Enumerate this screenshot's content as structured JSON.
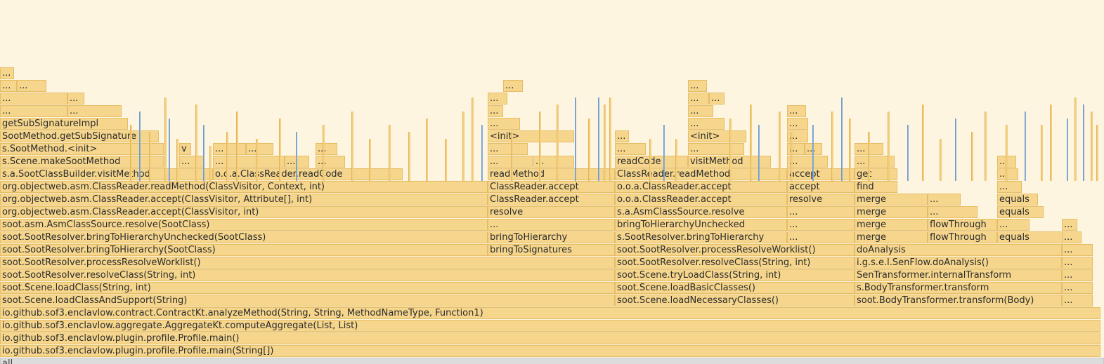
{
  "root_label": "all",
  "colors": {
    "frame": "#f6d68d",
    "frame_border": "#e5bd66",
    "highlight": "#8fb3d9",
    "background": "#fdf5df"
  },
  "frames": [
    {
      "label": "io.github.sof3.enclavlow.plugin.profile.Profile.main(String[])",
      "start": 0,
      "end": 99.7,
      "depth": 0
    },
    {
      "label": "io.github.sof3.enclavlow.plugin.profile.Profile.main()",
      "start": 0,
      "end": 99.7,
      "depth": 1
    },
    {
      "label": "io.github.sof3.enclavlow.aggregate.AggregateKt.computeAggregate(List, List)",
      "start": 0,
      "end": 99.7,
      "depth": 2
    },
    {
      "label": "io.github.sof3.enclavlow.contract.ContractKt.analyzeMethod(String, String, MethodNameType, Function1)",
      "start": 0,
      "end": 99.7,
      "depth": 3
    },
    {
      "label": "soot.Scene.loadClassAndSupport(String)",
      "start": 0,
      "end": 55.7,
      "depth": 4
    },
    {
      "label": "soot.Scene.loadClass(String, int)",
      "start": 0,
      "end": 55.7,
      "depth": 5
    },
    {
      "label": "soot.SootResolver.resolveClass(String, int)",
      "start": 0,
      "end": 55.7,
      "depth": 6
    },
    {
      "label": "soot.SootResolver.processResolveWorklist()",
      "start": 0,
      "end": 55.7,
      "depth": 7
    },
    {
      "label": "soot.SootResolver.bringToHierarchy(SootClass)",
      "start": 0,
      "end": 44.2,
      "depth": 8
    },
    {
      "label": "soot.SootResolver.bringToHierarchyUnchecked(SootClass)",
      "start": 0,
      "end": 44.2,
      "depth": 9
    },
    {
      "label": "soot.asm.AsmClassSource.resolve(SootClass)",
      "start": 0,
      "end": 44.2,
      "depth": 10
    },
    {
      "label": "org.objectweb.asm.ClassReader.accept(ClassVisitor, int)",
      "start": 0,
      "end": 44.2,
      "depth": 11
    },
    {
      "label": "org.objectweb.asm.ClassReader.accept(ClassVisitor, Attribute[], int)",
      "start": 0,
      "end": 44.2,
      "depth": 12
    },
    {
      "label": "org.objectweb.asm.ClassReader.readMethod(ClassVisitor, Context, int)",
      "start": 0,
      "end": 44.2,
      "depth": 13
    },
    {
      "label": "s.a.SootClassBuilder.visitMethod",
      "start": 0,
      "end": 19.3,
      "depth": 14
    },
    {
      "label": "o.o.a.ClassReader.readCode",
      "start": 19.3,
      "end": 36.5,
      "depth": 14
    },
    {
      "label": "s.Scene.makeSootMethod",
      "start": 0,
      "end": 14.8,
      "depth": 15
    },
    {
      "label": "s.SootMethod.<init>",
      "start": 0,
      "end": 14.8,
      "depth": 16
    },
    {
      "label": "v",
      "start": 16.2,
      "end": 17.3,
      "depth": 16
    },
    {
      "label": "...",
      "start": 19.3,
      "end": 22.3,
      "depth": 16
    },
    {
      "label": "...",
      "start": 22.3,
      "end": 24.8,
      "depth": 16
    },
    {
      "label": "...",
      "start": 28.6,
      "end": 30.6,
      "depth": 16
    },
    {
      "label": "...",
      "start": 16.2,
      "end": 18.4,
      "depth": 15
    },
    {
      "label": "...",
      "start": 19.3,
      "end": 25.8,
      "depth": 15
    },
    {
      "label": "...",
      "start": 25.8,
      "end": 28.0,
      "depth": 15
    },
    {
      "label": "...",
      "start": 28.6,
      "end": 31.3,
      "depth": 15
    },
    {
      "label": "SootMethod.getSubSignature",
      "start": 0,
      "end": 14.4,
      "depth": 17
    },
    {
      "label": "getSubSignatureImpl",
      "start": 0,
      "end": 11.6,
      "depth": 18
    },
    {
      "label": "...",
      "start": 0,
      "end": 6.1,
      "depth": 19
    },
    {
      "label": "...",
      "start": 6.1,
      "end": 11.0,
      "depth": 19
    },
    {
      "label": "...",
      "start": 0,
      "end": 6.1,
      "depth": 20
    },
    {
      "label": "...",
      "start": 6.1,
      "end": 7.6,
      "depth": 20
    },
    {
      "label": "...",
      "start": 0,
      "end": 1.5,
      "depth": 21
    },
    {
      "label": "...",
      "start": 1.5,
      "end": 4.2,
      "depth": 21
    },
    {
      "label": "...",
      "start": 0,
      "end": 1.3,
      "depth": 22
    },
    {
      "label": "bringToSignatures",
      "start": 44.2,
      "end": 55.7,
      "depth": 8
    },
    {
      "label": "bringToHierarchy",
      "start": 44.2,
      "end": 55.7,
      "depth": 9
    },
    {
      "label": "...",
      "start": 44.2,
      "end": 55.7,
      "depth": 10
    },
    {
      "label": "resolve",
      "start": 44.2,
      "end": 55.7,
      "depth": 11
    },
    {
      "label": "ClassReader.accept",
      "start": 44.2,
      "end": 55.7,
      "depth": 12
    },
    {
      "label": "ClassReader.accept",
      "start": 44.2,
      "end": 55.7,
      "depth": 13
    },
    {
      "label": "readMethod",
      "start": 44.2,
      "end": 55.7,
      "depth": 14
    },
    {
      "label": "...",
      "start": 44.2,
      "end": 48.3,
      "depth": 15
    },
    {
      "label": "...",
      "start": 48.3,
      "end": 52.0,
      "depth": 15
    },
    {
      "label": "...",
      "start": 44.2,
      "end": 47.8,
      "depth": 16
    },
    {
      "label": "<init>",
      "start": 44.2,
      "end": 52.0,
      "depth": 17
    },
    {
      "label": "...",
      "start": 44.2,
      "end": 47.1,
      "depth": 18
    },
    {
      "label": "...",
      "start": 44.2,
      "end": 45.6,
      "depth": 19
    },
    {
      "label": "...",
      "start": 44.2,
      "end": 46.0,
      "depth": 20
    },
    {
      "label": "...",
      "start": 45.6,
      "end": 47.4,
      "depth": 21
    },
    {
      "label": "soot.Scene.loadNecessaryClasses()",
      "start": 55.7,
      "end": 77.4,
      "depth": 4
    },
    {
      "label": "soot.Scene.loadBasicClasses()",
      "start": 55.7,
      "end": 77.4,
      "depth": 5
    },
    {
      "label": "soot.Scene.tryLoadClass(String, int)",
      "start": 55.7,
      "end": 77.4,
      "depth": 6
    },
    {
      "label": "soot.SootResolver.resolveClass(String, int)",
      "start": 55.7,
      "end": 77.4,
      "depth": 7
    },
    {
      "label": "soot.SootResolver.processResolveWorklist()",
      "start": 55.7,
      "end": 77.4,
      "depth": 8
    },
    {
      "label": "s.SootResolver.bringToHierarchy",
      "start": 55.7,
      "end": 71.3,
      "depth": 9
    },
    {
      "label": "...",
      "start": 71.3,
      "end": 77.4,
      "depth": 9
    },
    {
      "label": "bringToHierarchyUnchecked",
      "start": 55.7,
      "end": 71.3,
      "depth": 10
    },
    {
      "label": "...",
      "start": 71.3,
      "end": 77.4,
      "depth": 10
    },
    {
      "label": "s.a.AsmClassSource.resolve",
      "start": 55.7,
      "end": 71.3,
      "depth": 11
    },
    {
      "label": "...",
      "start": 71.3,
      "end": 77.4,
      "depth": 11
    },
    {
      "label": "o.o.a.ClassReader.accept",
      "start": 55.7,
      "end": 71.3,
      "depth": 12
    },
    {
      "label": "resolve",
      "start": 71.3,
      "end": 77.4,
      "depth": 12
    },
    {
      "label": "o.o.a.ClassReader.accept",
      "start": 55.7,
      "end": 71.3,
      "depth": 13
    },
    {
      "label": "accept",
      "start": 71.3,
      "end": 77.4,
      "depth": 13
    },
    {
      "label": "ClassReader.readMethod",
      "start": 55.7,
      "end": 71.3,
      "depth": 14
    },
    {
      "label": "accept",
      "start": 71.3,
      "end": 77.4,
      "depth": 14
    },
    {
      "label": "readCode",
      "start": 55.7,
      "end": 62.3,
      "depth": 15
    },
    {
      "label": "visitMethod",
      "start": 62.3,
      "end": 69.8,
      "depth": 15
    },
    {
      "label": "...",
      "start": 71.3,
      "end": 75.0,
      "depth": 15
    },
    {
      "label": "...",
      "start": 55.7,
      "end": 58.5,
      "depth": 16
    },
    {
      "label": "...",
      "start": 62.3,
      "end": 67.4,
      "depth": 16
    },
    {
      "label": "...",
      "start": 71.3,
      "end": 72.9,
      "depth": 16
    },
    {
      "label": "...",
      "start": 72.9,
      "end": 74.5,
      "depth": 16
    },
    {
      "label": "...",
      "start": 55.7,
      "end": 57.0,
      "depth": 17
    },
    {
      "label": "<init>",
      "start": 62.3,
      "end": 67.6,
      "depth": 17
    },
    {
      "label": "...",
      "start": 71.3,
      "end": 73.2,
      "depth": 17
    },
    {
      "label": "...",
      "start": 62.3,
      "end": 65.6,
      "depth": 18
    },
    {
      "label": "...",
      "start": 71.3,
      "end": 73.2,
      "depth": 18
    },
    {
      "label": "...",
      "start": 62.3,
      "end": 64.6,
      "depth": 19
    },
    {
      "label": "...",
      "start": 71.3,
      "end": 73.0,
      "depth": 19
    },
    {
      "label": "...",
      "start": 62.3,
      "end": 64.2,
      "depth": 20
    },
    {
      "label": "...",
      "start": 64.2,
      "end": 65.6,
      "depth": 20
    },
    {
      "label": "...",
      "start": 62.3,
      "end": 64.0,
      "depth": 21
    },
    {
      "label": "soot.BodyTransformer.transform(Body)",
      "start": 77.4,
      "end": 96.2,
      "depth": 4
    },
    {
      "label": "...",
      "start": 96.2,
      "end": 99.0,
      "depth": 4
    },
    {
      "label": "s.BodyTransformer.transform",
      "start": 77.4,
      "end": 96.2,
      "depth": 5
    },
    {
      "label": "...",
      "start": 96.2,
      "end": 99.0,
      "depth": 5
    },
    {
      "label": "SenTransformer.internalTransform",
      "start": 77.4,
      "end": 96.2,
      "depth": 6
    },
    {
      "label": "...",
      "start": 96.2,
      "end": 99.0,
      "depth": 6
    },
    {
      "label": "i.g.s.e.l.SenFlow.doAnalysis()",
      "start": 77.4,
      "end": 96.2,
      "depth": 7
    },
    {
      "label": "...",
      "start": 96.2,
      "end": 99.0,
      "depth": 7
    },
    {
      "label": "doAnalysis",
      "start": 77.4,
      "end": 96.2,
      "depth": 8
    },
    {
      "label": "...",
      "start": 96.2,
      "end": 99.0,
      "depth": 8
    },
    {
      "label": "merge",
      "start": 77.4,
      "end": 84.0,
      "depth": 9
    },
    {
      "label": "flowThrough",
      "start": 84.0,
      "end": 90.3,
      "depth": 9
    },
    {
      "label": "equals",
      "start": 90.3,
      "end": 96.2,
      "depth": 9
    },
    {
      "label": "...",
      "start": 96.2,
      "end": 98.0,
      "depth": 9
    },
    {
      "label": "merge",
      "start": 77.4,
      "end": 84.0,
      "depth": 10
    },
    {
      "label": "flowThrough",
      "start": 84.0,
      "end": 90.3,
      "depth": 10
    },
    {
      "label": "...",
      "start": 90.3,
      "end": 93.2,
      "depth": 10
    },
    {
      "label": "...",
      "start": 96.2,
      "end": 97.6,
      "depth": 10
    },
    {
      "label": "merge",
      "start": 77.4,
      "end": 84.0,
      "depth": 11
    },
    {
      "label": "...",
      "start": 84.0,
      "end": 88.5,
      "depth": 11
    },
    {
      "label": "equals",
      "start": 90.3,
      "end": 94.5,
      "depth": 11
    },
    {
      "label": "merge",
      "start": 77.4,
      "end": 84.0,
      "depth": 12
    },
    {
      "label": "...",
      "start": 84.0,
      "end": 87.0,
      "depth": 12
    },
    {
      "label": "equals",
      "start": 90.3,
      "end": 94.0,
      "depth": 12
    },
    {
      "label": "find",
      "start": 77.4,
      "end": 81.3,
      "depth": 13
    },
    {
      "label": "...",
      "start": 90.3,
      "end": 92.5,
      "depth": 13
    },
    {
      "label": "get",
      "start": 77.4,
      "end": 81.3,
      "depth": 14
    },
    {
      "label": "...",
      "start": 90.3,
      "end": 92.2,
      "depth": 14
    },
    {
      "label": "...",
      "start": 77.4,
      "end": 81.0,
      "depth": 15
    },
    {
      "label": "...",
      "start": 90.3,
      "end": 92.0,
      "depth": 15
    },
    {
      "label": "...",
      "start": 77.4,
      "end": 80.0,
      "depth": 16
    }
  ],
  "spikes": [
    {
      "p": 11.8,
      "d": 10,
      "b": false
    },
    {
      "p": 12.6,
      "d": 12,
      "b": true
    },
    {
      "p": 13.5,
      "d": 9,
      "b": false
    },
    {
      "p": 14.9,
      "d": 14,
      "b": false
    },
    {
      "p": 15.3,
      "d": 11,
      "b": true
    },
    {
      "p": 16.0,
      "d": 8,
      "b": false
    },
    {
      "p": 17.7,
      "d": 13,
      "b": false
    },
    {
      "p": 18.4,
      "d": 10,
      "b": true
    },
    {
      "p": 19.0,
      "d": 7,
      "b": false
    },
    {
      "p": 20.5,
      "d": 9,
      "b": false
    },
    {
      "p": 21.4,
      "d": 12,
      "b": false
    },
    {
      "p": 23.2,
      "d": 8,
      "b": false
    },
    {
      "p": 25.3,
      "d": 11,
      "b": false
    },
    {
      "p": 26.8,
      "d": 9,
      "b": true
    },
    {
      "p": 29.2,
      "d": 10,
      "b": false
    },
    {
      "p": 31.8,
      "d": 12,
      "b": false
    },
    {
      "p": 33.4,
      "d": 8,
      "b": false
    },
    {
      "p": 35.2,
      "d": 10,
      "b": false
    },
    {
      "p": 37.0,
      "d": 9,
      "b": false
    },
    {
      "p": 38.6,
      "d": 11,
      "b": false
    },
    {
      "p": 40.3,
      "d": 8,
      "b": false
    },
    {
      "p": 41.9,
      "d": 12,
      "b": false
    },
    {
      "p": 42.7,
      "d": 14,
      "b": false
    },
    {
      "p": 43.6,
      "d": 10,
      "b": true
    },
    {
      "p": 46.3,
      "d": 9,
      "b": false
    },
    {
      "p": 48.8,
      "d": 12,
      "b": false
    },
    {
      "p": 50.4,
      "d": 13,
      "b": false
    },
    {
      "p": 52.1,
      "d": 14,
      "b": true
    },
    {
      "p": 53.3,
      "d": 11,
      "b": false
    },
    {
      "p": 54.2,
      "d": 14,
      "b": true
    },
    {
      "p": 54.7,
      "d": 13,
      "b": false
    },
    {
      "p": 55.2,
      "d": 14,
      "b": false
    },
    {
      "p": 58.8,
      "d": 8,
      "b": false
    },
    {
      "p": 60.1,
      "d": 10,
      "b": true
    },
    {
      "p": 61.2,
      "d": 8,
      "b": false
    },
    {
      "p": 66.1,
      "d": 11,
      "b": false
    },
    {
      "p": 67.9,
      "d": 13,
      "b": false
    },
    {
      "p": 68.7,
      "d": 10,
      "b": true
    },
    {
      "p": 70.5,
      "d": 12,
      "b": false
    },
    {
      "p": 71.6,
      "d": 9,
      "b": false
    },
    {
      "p": 73.6,
      "d": 10,
      "b": true
    },
    {
      "p": 75.3,
      "d": 12,
      "b": false
    },
    {
      "p": 76.2,
      "d": 14,
      "b": true
    },
    {
      "p": 76.9,
      "d": 11,
      "b": false
    },
    {
      "p": 78.6,
      "d": 9,
      "b": false
    },
    {
      "p": 80.4,
      "d": 12,
      "b": false
    },
    {
      "p": 82.2,
      "d": 10,
      "b": true
    },
    {
      "p": 83.5,
      "d": 13,
      "b": false
    },
    {
      "p": 85.1,
      "d": 8,
      "b": false
    },
    {
      "p": 86.5,
      "d": 11,
      "b": true
    },
    {
      "p": 88.0,
      "d": 9,
      "b": false
    },
    {
      "p": 89.2,
      "d": 12,
      "b": false
    },
    {
      "p": 91.1,
      "d": 10,
      "b": false
    },
    {
      "p": 92.8,
      "d": 12,
      "b": true
    },
    {
      "p": 94.3,
      "d": 10,
      "b": false
    },
    {
      "p": 95.1,
      "d": 13,
      "b": false
    },
    {
      "p": 96.6,
      "d": 11,
      "b": true
    },
    {
      "p": 97.3,
      "d": 14,
      "b": false
    },
    {
      "p": 98.1,
      "d": 13,
      "b": true
    },
    {
      "p": 98.8,
      "d": 12,
      "b": false
    },
    {
      "p": 99.3,
      "d": 10,
      "b": false
    }
  ]
}
